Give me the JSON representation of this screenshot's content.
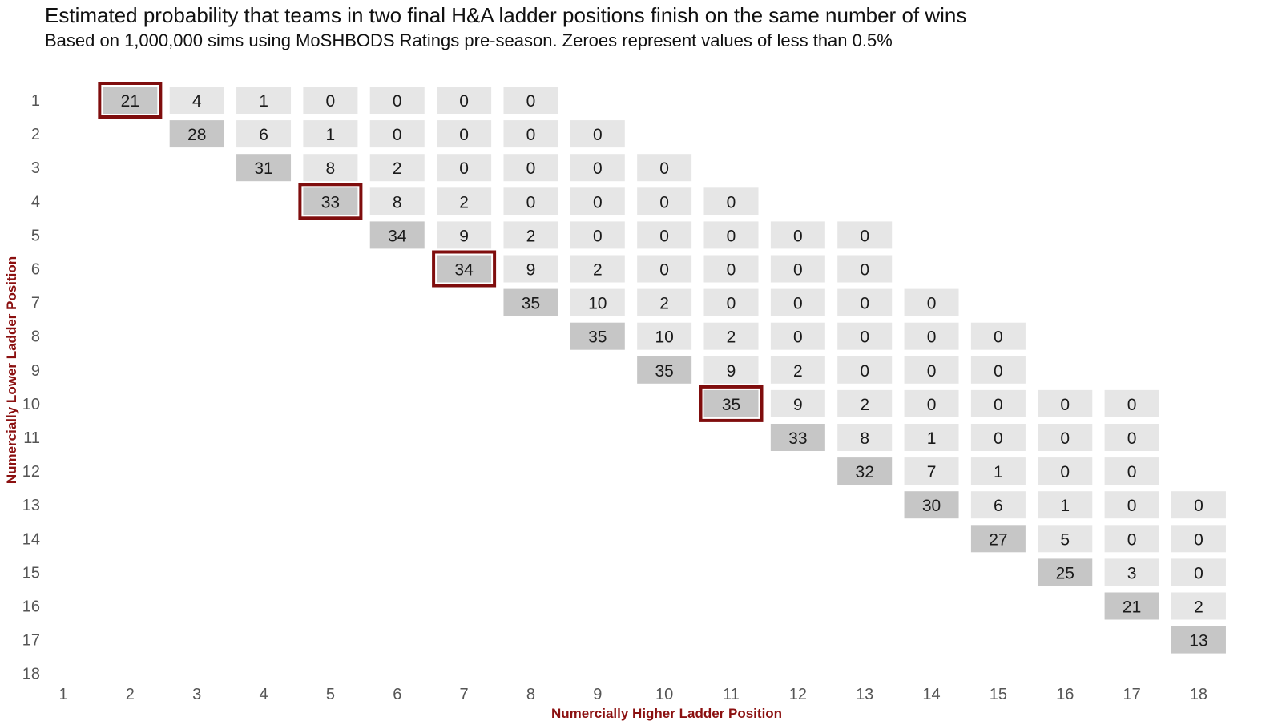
{
  "chart_data": {
    "type": "heatmap",
    "title": "Estimated probability that teams in two final H&A ladder positions finish on the same number of wins",
    "subtitle": "Based on 1,000,000 sims using MoSHBODS Ratings pre-season. Zeroes represent values of less than 0.5%",
    "xlabel": "Numercially Higher Ladder Position",
    "ylabel": "Numercially Lower Ladder Position",
    "x_categories": [
      1,
      2,
      3,
      4,
      5,
      6,
      7,
      8,
      9,
      10,
      11,
      12,
      13,
      14,
      15,
      16,
      17,
      18
    ],
    "y_categories": [
      1,
      2,
      3,
      4,
      5,
      6,
      7,
      8,
      9,
      10,
      11,
      12,
      13,
      14,
      15,
      16,
      17,
      18
    ],
    "colors": {
      "adjacent_fill": "#c6c6c6",
      "other_fill": "#e6e6e6",
      "highlight_border": "#7f0d0d",
      "axis_title": "#8b1010"
    },
    "cells": [
      {
        "y": 1,
        "x": 2,
        "value": 21,
        "highlight": true
      },
      {
        "y": 1,
        "x": 3,
        "value": 4
      },
      {
        "y": 1,
        "x": 4,
        "value": 1
      },
      {
        "y": 1,
        "x": 5,
        "value": 0
      },
      {
        "y": 1,
        "x": 6,
        "value": 0
      },
      {
        "y": 1,
        "x": 7,
        "value": 0
      },
      {
        "y": 1,
        "x": 8,
        "value": 0
      },
      {
        "y": 2,
        "x": 3,
        "value": 28
      },
      {
        "y": 2,
        "x": 4,
        "value": 6
      },
      {
        "y": 2,
        "x": 5,
        "value": 1
      },
      {
        "y": 2,
        "x": 6,
        "value": 0
      },
      {
        "y": 2,
        "x": 7,
        "value": 0
      },
      {
        "y": 2,
        "x": 8,
        "value": 0
      },
      {
        "y": 2,
        "x": 9,
        "value": 0
      },
      {
        "y": 3,
        "x": 4,
        "value": 31
      },
      {
        "y": 3,
        "x": 5,
        "value": 8
      },
      {
        "y": 3,
        "x": 6,
        "value": 2
      },
      {
        "y": 3,
        "x": 7,
        "value": 0
      },
      {
        "y": 3,
        "x": 8,
        "value": 0
      },
      {
        "y": 3,
        "x": 9,
        "value": 0
      },
      {
        "y": 3,
        "x": 10,
        "value": 0
      },
      {
        "y": 4,
        "x": 5,
        "value": 33,
        "highlight": true
      },
      {
        "y": 4,
        "x": 6,
        "value": 8
      },
      {
        "y": 4,
        "x": 7,
        "value": 2
      },
      {
        "y": 4,
        "x": 8,
        "value": 0
      },
      {
        "y": 4,
        "x": 9,
        "value": 0
      },
      {
        "y": 4,
        "x": 10,
        "value": 0
      },
      {
        "y": 4,
        "x": 11,
        "value": 0
      },
      {
        "y": 5,
        "x": 6,
        "value": 34
      },
      {
        "y": 5,
        "x": 7,
        "value": 9
      },
      {
        "y": 5,
        "x": 8,
        "value": 2
      },
      {
        "y": 5,
        "x": 9,
        "value": 0
      },
      {
        "y": 5,
        "x": 10,
        "value": 0
      },
      {
        "y": 5,
        "x": 11,
        "value": 0
      },
      {
        "y": 5,
        "x": 12,
        "value": 0
      },
      {
        "y": 5,
        "x": 13,
        "value": 0
      },
      {
        "y": 6,
        "x": 7,
        "value": 34,
        "highlight": true
      },
      {
        "y": 6,
        "x": 8,
        "value": 9
      },
      {
        "y": 6,
        "x": 9,
        "value": 2
      },
      {
        "y": 6,
        "x": 10,
        "value": 0
      },
      {
        "y": 6,
        "x": 11,
        "value": 0
      },
      {
        "y": 6,
        "x": 12,
        "value": 0
      },
      {
        "y": 6,
        "x": 13,
        "value": 0
      },
      {
        "y": 7,
        "x": 8,
        "value": 35
      },
      {
        "y": 7,
        "x": 9,
        "value": 10
      },
      {
        "y": 7,
        "x": 10,
        "value": 2
      },
      {
        "y": 7,
        "x": 11,
        "value": 0
      },
      {
        "y": 7,
        "x": 12,
        "value": 0
      },
      {
        "y": 7,
        "x": 13,
        "value": 0
      },
      {
        "y": 7,
        "x": 14,
        "value": 0
      },
      {
        "y": 8,
        "x": 9,
        "value": 35
      },
      {
        "y": 8,
        "x": 10,
        "value": 10
      },
      {
        "y": 8,
        "x": 11,
        "value": 2
      },
      {
        "y": 8,
        "x": 12,
        "value": 0
      },
      {
        "y": 8,
        "x": 13,
        "value": 0
      },
      {
        "y": 8,
        "x": 14,
        "value": 0
      },
      {
        "y": 8,
        "x": 15,
        "value": 0
      },
      {
        "y": 9,
        "x": 10,
        "value": 35
      },
      {
        "y": 9,
        "x": 11,
        "value": 9
      },
      {
        "y": 9,
        "x": 12,
        "value": 2
      },
      {
        "y": 9,
        "x": 13,
        "value": 0
      },
      {
        "y": 9,
        "x": 14,
        "value": 0
      },
      {
        "y": 9,
        "x": 15,
        "value": 0
      },
      {
        "y": 10,
        "x": 11,
        "value": 35,
        "highlight": true
      },
      {
        "y": 10,
        "x": 12,
        "value": 9
      },
      {
        "y": 10,
        "x": 13,
        "value": 2
      },
      {
        "y": 10,
        "x": 14,
        "value": 0
      },
      {
        "y": 10,
        "x": 15,
        "value": 0
      },
      {
        "y": 10,
        "x": 16,
        "value": 0
      },
      {
        "y": 10,
        "x": 17,
        "value": 0
      },
      {
        "y": 11,
        "x": 12,
        "value": 33
      },
      {
        "y": 11,
        "x": 13,
        "value": 8
      },
      {
        "y": 11,
        "x": 14,
        "value": 1
      },
      {
        "y": 11,
        "x": 15,
        "value": 0
      },
      {
        "y": 11,
        "x": 16,
        "value": 0
      },
      {
        "y": 11,
        "x": 17,
        "value": 0
      },
      {
        "y": 12,
        "x": 13,
        "value": 32
      },
      {
        "y": 12,
        "x": 14,
        "value": 7
      },
      {
        "y": 12,
        "x": 15,
        "value": 1
      },
      {
        "y": 12,
        "x": 16,
        "value": 0
      },
      {
        "y": 12,
        "x": 17,
        "value": 0
      },
      {
        "y": 13,
        "x": 14,
        "value": 30
      },
      {
        "y": 13,
        "x": 15,
        "value": 6
      },
      {
        "y": 13,
        "x": 16,
        "value": 1
      },
      {
        "y": 13,
        "x": 17,
        "value": 0
      },
      {
        "y": 13,
        "x": 18,
        "value": 0
      },
      {
        "y": 14,
        "x": 15,
        "value": 27
      },
      {
        "y": 14,
        "x": 16,
        "value": 5
      },
      {
        "y": 14,
        "x": 17,
        "value": 0
      },
      {
        "y": 14,
        "x": 18,
        "value": 0
      },
      {
        "y": 15,
        "x": 16,
        "value": 25
      },
      {
        "y": 15,
        "x": 17,
        "value": 3
      },
      {
        "y": 15,
        "x": 18,
        "value": 0
      },
      {
        "y": 16,
        "x": 17,
        "value": 21
      },
      {
        "y": 16,
        "x": 18,
        "value": 2
      },
      {
        "y": 17,
        "x": 18,
        "value": 13
      }
    ]
  }
}
